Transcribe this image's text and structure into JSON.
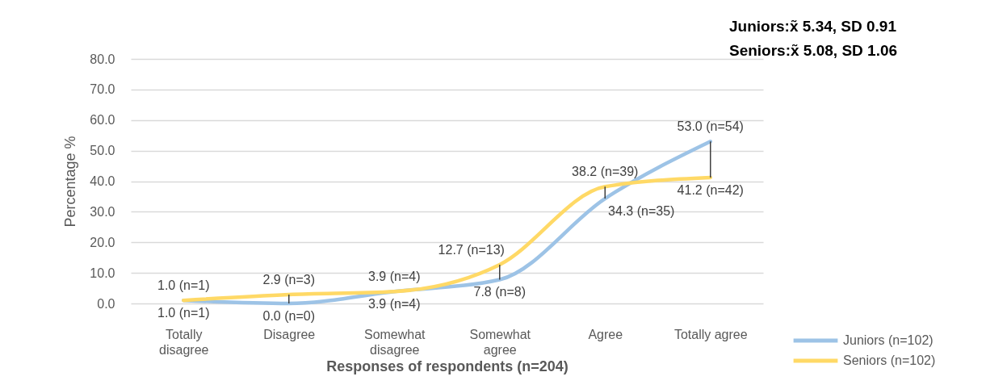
{
  "chart_data": {
    "type": "line",
    "xlabel": "Responses of respondents (n=204)",
    "ylabel": "Percentage %",
    "annotations": [
      "Juniors:x̃ 5.34, SD 0.91",
      "Seniors:x̃ 5.08, SD 1.06"
    ],
    "categories": [
      "Totally disagree",
      "Disagree",
      "Somewhat disagree",
      "Somewhat agree",
      "Agree",
      "Totally agree"
    ],
    "series": [
      {
        "name": "Juniors (n=102)",
        "color": "#9dc3e6",
        "values": [
          1.0,
          0.0,
          3.9,
          7.8,
          34.3,
          53.0
        ],
        "value_labels": [
          "1.0 (n=1)",
          "0.0 (n=0)",
          "3.9 (n=4)",
          "7.8 (n=8)",
          "34.3 (n=35)",
          "53.0 (n=54)"
        ]
      },
      {
        "name": "Seniors (n=102)",
        "color": "#ffd966",
        "values": [
          1.0,
          2.9,
          3.9,
          12.7,
          38.2,
          41.2
        ],
        "value_labels": [
          "1.0 (n=1)",
          "2.9 (n=3)",
          "3.9 (n=4)",
          "12.7 (n=13)",
          "38.2 (n=39)",
          "41.2 (n=42)"
        ]
      }
    ],
    "ylim": [
      0,
      80
    ],
    "yticks": [
      {
        "value": 0,
        "label": "0.0"
      },
      {
        "value": 10,
        "label": "10.0"
      },
      {
        "value": 20,
        "label": "20.0"
      },
      {
        "value": 30,
        "label": "30.0"
      },
      {
        "value": 40,
        "label": "40.0"
      },
      {
        "value": 50,
        "label": "50.0"
      },
      {
        "value": 60,
        "label": "60.0"
      },
      {
        "value": 70,
        "label": "70.0"
      },
      {
        "value": 80,
        "label": "80.0"
      }
    ],
    "grid": "y",
    "legend": "bottom right"
  }
}
